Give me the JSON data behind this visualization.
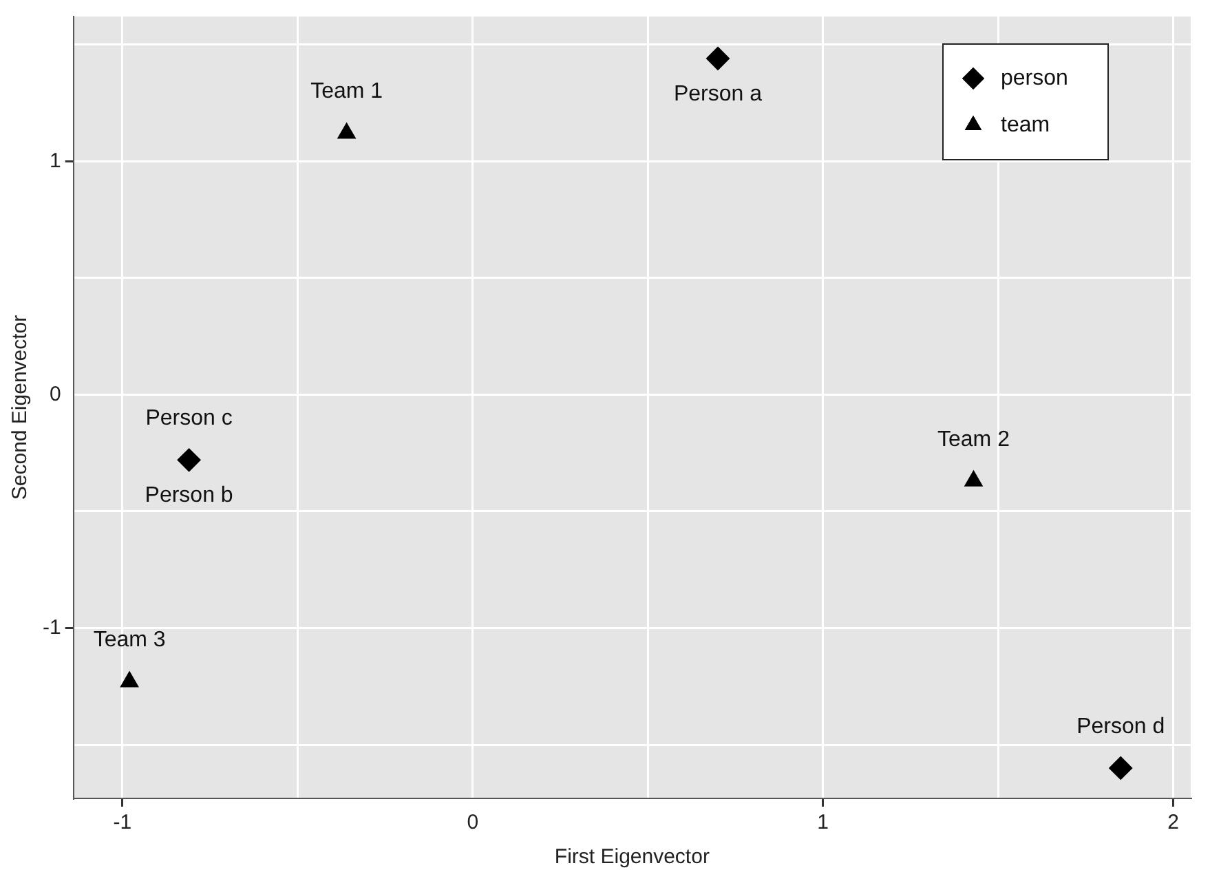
{
  "chart_data": {
    "type": "scatter",
    "xlabel": "First Eigenvector",
    "ylabel": "Second Eigenvector",
    "xlim": [
      -1.14,
      2.05
    ],
    "ylim": [
      -1.73,
      1.62
    ],
    "xticks": [
      -1,
      {
        "value": -0.5,
        "label": null
      },
      0,
      {
        "value": 0.5,
        "label": null
      },
      1,
      {
        "value": 1.5,
        "label": null
      },
      2
    ],
    "yticks": [
      {
        "value": -1.5,
        "label": null
      },
      -1,
      {
        "value": -0.5,
        "label": null
      },
      0,
      {
        "value": 0.5,
        "label": null
      },
      1,
      {
        "value": 1.5,
        "label": null
      }
    ],
    "grid": true,
    "legend": "top right",
    "series": [
      {
        "name": "person",
        "color": "#000000",
        "marker": "diamond",
        "x": [
          0.7,
          -0.81,
          1.85
        ],
        "values": [
          1.44,
          -0.28,
          -1.6
        ]
      },
      {
        "name": "team",
        "color": "#000000",
        "marker": "triangle",
        "x": [
          -0.36,
          1.43,
          -0.98
        ],
        "values": [
          1.12,
          -0.37,
          -1.23
        ]
      }
    ],
    "annotations": [
      {
        "text": "Team 1",
        "x": -0.36,
        "y": 1.12
      },
      {
        "text": "Person a",
        "x": 0.7,
        "y": 1.44
      },
      {
        "text": "Person c",
        "x": -0.81,
        "y": -0.28
      },
      {
        "text": "Person b",
        "x": -0.81,
        "y": -0.28
      },
      {
        "text": "Team 2",
        "x": 1.43,
        "y": -0.37
      },
      {
        "text": "Team 3",
        "x": -0.98,
        "y": -1.23
      },
      {
        "text": "Person d",
        "x": 1.85,
        "y": -1.6
      }
    ]
  }
}
